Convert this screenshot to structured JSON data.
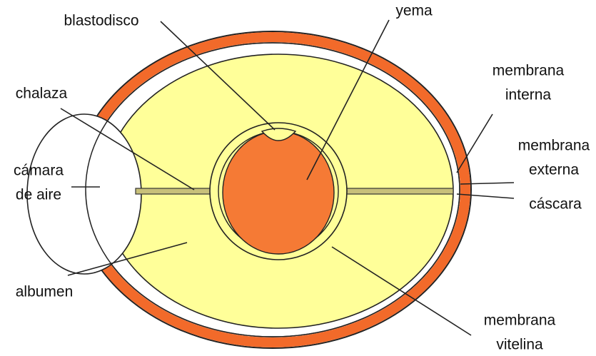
{
  "nodes": [
    {
      "lines": [
        "blastodisco"
      ]
    },
    {
      "lines": [
        "yema"
      ]
    },
    {
      "lines": [
        "membrana",
        "interna"
      ]
    },
    {
      "lines": [
        "chalaza"
      ]
    },
    {
      "lines": [
        "membrana",
        "externa"
      ]
    },
    {
      "lines": [
        "cámara",
        "de aire"
      ]
    },
    {
      "lines": [
        "cáscara"
      ]
    },
    {
      "lines": [
        "albumen"
      ]
    },
    {
      "lines": [
        "membrana",
        "vitelina"
      ]
    }
  ]
}
